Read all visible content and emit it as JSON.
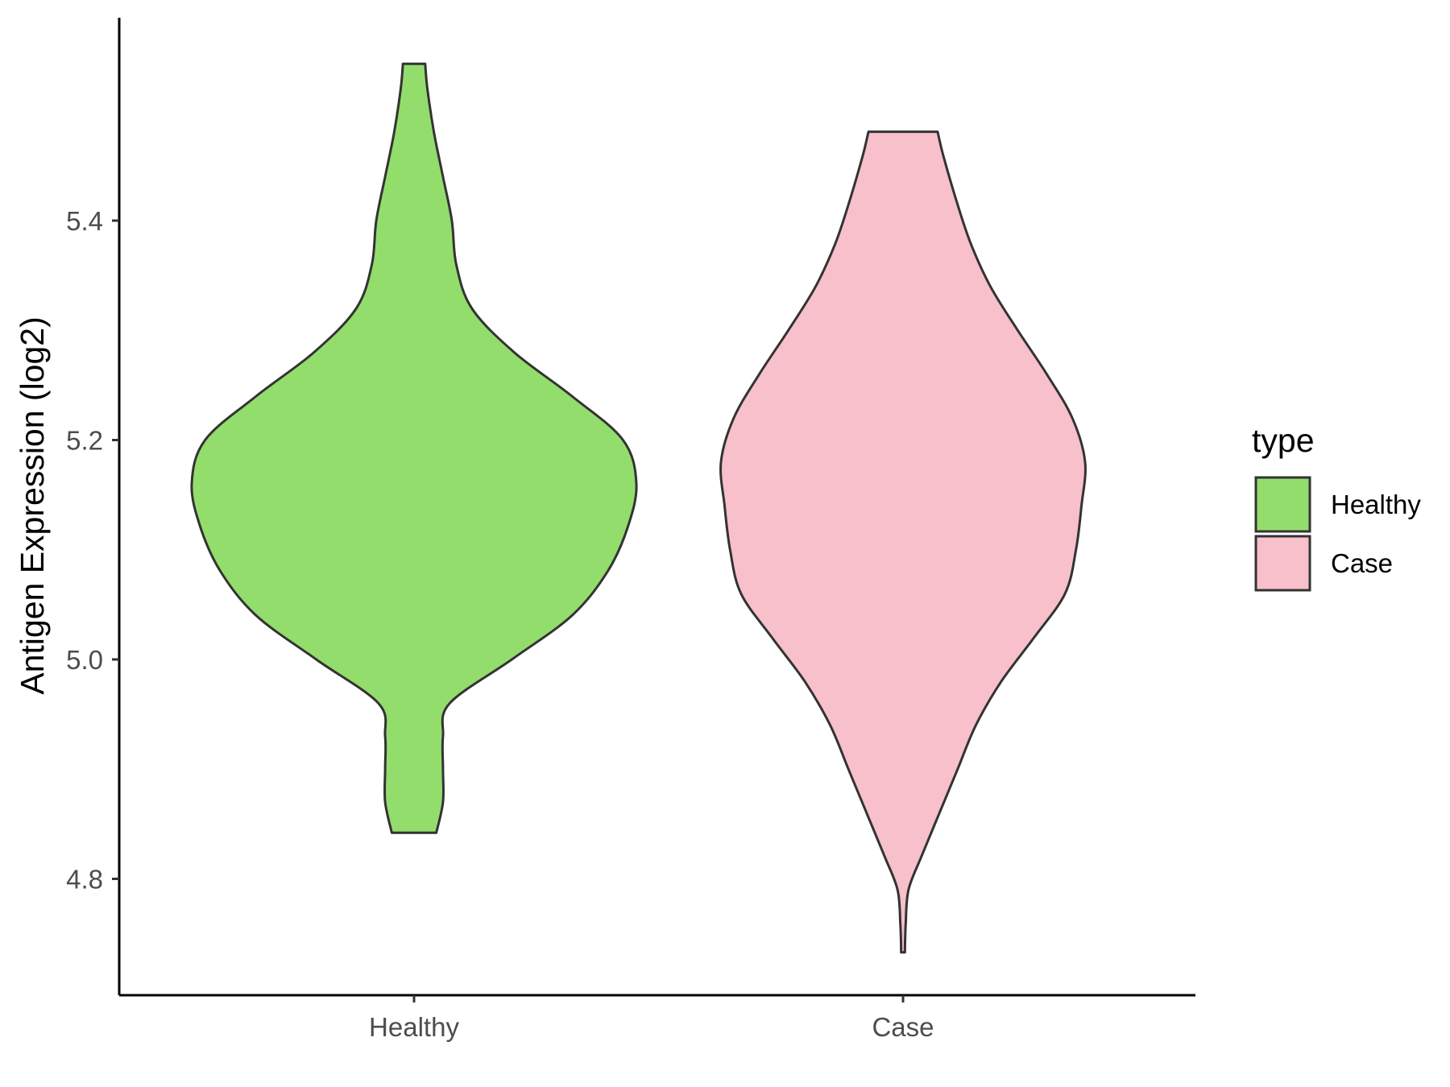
{
  "chart_data": {
    "type": "violin",
    "title": "",
    "xlabel": "",
    "ylabel": "Antigen Expression (log2)",
    "ylim": [
      4.69,
      5.58
    ],
    "yticks": [
      4.8,
      5.0,
      5.2,
      5.4
    ],
    "ytick_labels": [
      "4.8",
      "5.0",
      "5.2",
      "5.4"
    ],
    "categories": [
      "Healthy",
      "Case"
    ],
    "grid": false,
    "legend": {
      "title": "type",
      "position": "right",
      "entries": [
        {
          "label": "Healthy",
          "color": "#93dd6c"
        },
        {
          "label": "Case",
          "color": "#f7c0cb"
        }
      ]
    },
    "series": [
      {
        "category": "Healthy",
        "color": "#93dd6c",
        "min": 4.842,
        "max": 5.543,
        "density_profile": [
          [
            4.842,
            0.1
          ],
          [
            4.87,
            0.13
          ],
          [
            4.9,
            0.13
          ],
          [
            4.93,
            0.13
          ],
          [
            4.96,
            0.16
          ],
          [
            5.0,
            0.44
          ],
          [
            5.04,
            0.71
          ],
          [
            5.08,
            0.87
          ],
          [
            5.12,
            0.96
          ],
          [
            5.16,
            1.0
          ],
          [
            5.2,
            0.94
          ],
          [
            5.24,
            0.71
          ],
          [
            5.28,
            0.45
          ],
          [
            5.32,
            0.26
          ],
          [
            5.36,
            0.19
          ],
          [
            5.4,
            0.17
          ],
          [
            5.44,
            0.13
          ],
          [
            5.48,
            0.09
          ],
          [
            5.52,
            0.06
          ],
          [
            5.543,
            0.05
          ]
        ]
      },
      {
        "category": "Case",
        "color": "#f7c0cb",
        "min": 4.733,
        "max": 5.481,
        "density_profile": [
          [
            4.733,
            0.01
          ],
          [
            4.76,
            0.015
          ],
          [
            4.79,
            0.03
          ],
          [
            4.82,
            0.1
          ],
          [
            4.86,
            0.2
          ],
          [
            4.9,
            0.3
          ],
          [
            4.94,
            0.4
          ],
          [
            4.98,
            0.54
          ],
          [
            5.02,
            0.72
          ],
          [
            5.06,
            0.89
          ],
          [
            5.1,
            0.95
          ],
          [
            5.14,
            0.98
          ],
          [
            5.18,
            1.0
          ],
          [
            5.22,
            0.93
          ],
          [
            5.26,
            0.79
          ],
          [
            5.3,
            0.63
          ],
          [
            5.34,
            0.48
          ],
          [
            5.38,
            0.37
          ],
          [
            5.42,
            0.29
          ],
          [
            5.46,
            0.22
          ],
          [
            5.481,
            0.19
          ]
        ]
      }
    ]
  }
}
